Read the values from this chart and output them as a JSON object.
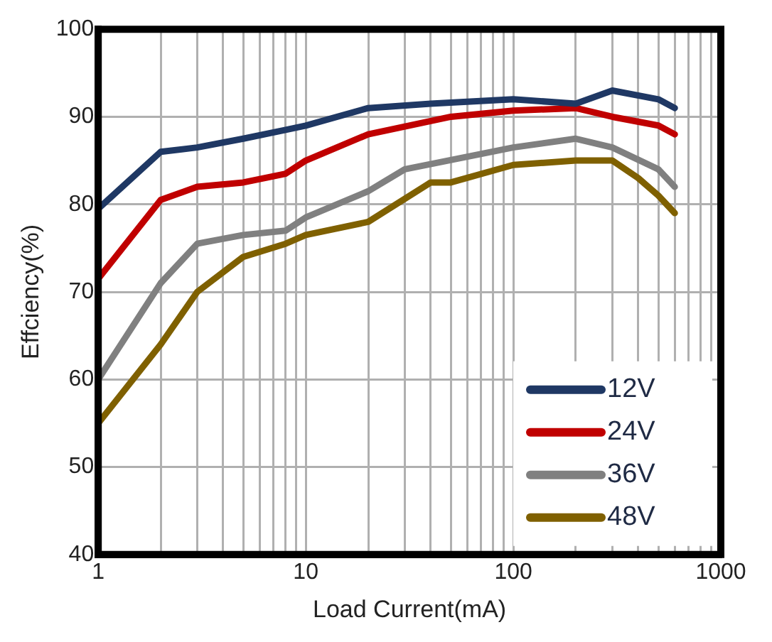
{
  "chart_data": {
    "type": "line",
    "xlabel": "Load Current(mA)",
    "ylabel": "Effciency(%)",
    "log": "x",
    "grid": true,
    "legend": "bottom right",
    "line_style": "solid",
    "marker": "none",
    "xlim": [
      1,
      1000
    ],
    "ylim": [
      40,
      100
    ],
    "xticks": [
      1,
      {
        "value": 2,
        "label": null
      },
      {
        "value": 3,
        "label": null
      },
      {
        "value": 4,
        "label": null
      },
      {
        "value": 5,
        "label": null
      },
      {
        "value": 6,
        "label": null
      },
      {
        "value": 7,
        "label": null
      },
      {
        "value": 8,
        "label": null
      },
      {
        "value": 9,
        "label": null
      },
      10,
      {
        "value": 20,
        "label": null
      },
      {
        "value": 30,
        "label": null
      },
      {
        "value": 40,
        "label": null
      },
      {
        "value": 50,
        "label": null
      },
      {
        "value": 60,
        "label": null
      },
      {
        "value": 70,
        "label": null
      },
      {
        "value": 80,
        "label": null
      },
      {
        "value": 90,
        "label": null
      },
      100,
      {
        "value": 200,
        "label": null
      },
      {
        "value": 300,
        "label": null
      },
      {
        "value": 400,
        "label": null
      },
      {
        "value": 500,
        "label": null
      },
      {
        "value": 600,
        "label": null
      },
      {
        "value": 700,
        "label": null
      },
      {
        "value": 800,
        "label": null
      },
      {
        "value": 900,
        "label": null
      },
      1000
    ],
    "yticks": [
      40,
      50,
      60,
      70,
      80,
      90,
      100
    ],
    "series": [
      {
        "name": "12V",
        "color": "#1f3864",
        "x": [
          1,
          2,
          3,
          5,
          8,
          10,
          20,
          40,
          100,
          200,
          300,
          500,
          600
        ],
        "values": [
          79.5,
          86,
          86.5,
          87.5,
          88.5,
          89,
          91,
          91.5,
          92,
          91.5,
          93,
          92,
          91
        ]
      },
      {
        "name": "24V",
        "color": "#c00000",
        "x": [
          1,
          2,
          3,
          5,
          8,
          10,
          20,
          50,
          100,
          200,
          300,
          500,
          600
        ],
        "values": [
          71.5,
          80.5,
          82,
          82.5,
          83.5,
          85,
          88,
          90,
          90.7,
          91,
          90,
          89,
          88
        ]
      },
      {
        "name": "36V",
        "color": "#808080",
        "x": [
          1,
          2,
          3,
          5,
          8,
          10,
          20,
          30,
          100,
          200,
          300,
          500,
          600
        ],
        "values": [
          60,
          71,
          75.5,
          76.5,
          77,
          78.5,
          81.5,
          84,
          86.5,
          87.5,
          86.5,
          84,
          82
        ]
      },
      {
        "name": "48V",
        "color": "#7f6000",
        "x": [
          1,
          2,
          3,
          5,
          8,
          10,
          20,
          40,
          50,
          100,
          200,
          300,
          400,
          500,
          600
        ],
        "values": [
          55,
          64,
          70,
          74,
          75.5,
          76.5,
          78,
          82.5,
          82.5,
          84.5,
          85,
          85,
          83,
          81,
          79
        ]
      }
    ]
  }
}
